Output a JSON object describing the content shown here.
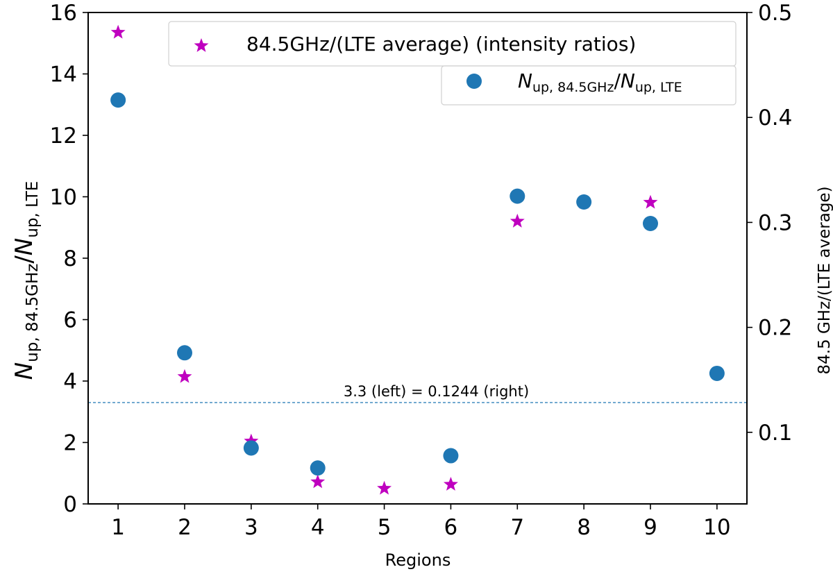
{
  "chart_data": {
    "type": "scatter",
    "xlabel": "Regions",
    "ylabel_left": "N_up, 84.5GHz / N_up, LTE",
    "ylabel_right": "84.5 GHz/(LTE average)",
    "x_ticks": [
      "1",
      "2",
      "3",
      "4",
      "5",
      "6",
      "7",
      "8",
      "9",
      "10"
    ],
    "xlim": [
      0.55,
      10.45
    ],
    "ylim_left": [
      0,
      16
    ],
    "ylim_right": [
      0.0318,
      0.5
    ],
    "left_ticks": [
      "0",
      "2",
      "4",
      "6",
      "8",
      "10",
      "12",
      "14",
      "16"
    ],
    "right_ticks": [
      "0.1",
      "0.2",
      "0.3",
      "0.4",
      "0.5"
    ],
    "series": [
      {
        "name": "84.5GHz/(LTE average) (intensity ratios)",
        "axis": "right",
        "marker": "star",
        "color": "#bf00bf",
        "x": [
          1,
          2,
          3,
          4,
          5,
          6,
          7,
          8,
          9
        ],
        "y": [
          0.481,
          0.153,
          0.0915,
          0.0527,
          0.0465,
          0.0503,
          0.301,
          0.319,
          0.319
        ]
      },
      {
        "name": "N_up, 84.5GHz / N_up, LTE",
        "axis": "left",
        "marker": "circle",
        "color": "#1f77b4",
        "x": [
          1,
          2,
          3,
          4,
          5,
          6,
          7,
          8,
          9,
          10
        ],
        "y": [
          13.15,
          4.92,
          1.82,
          1.17,
          null,
          1.57,
          10.02,
          9.83,
          9.13,
          4.25
        ]
      }
    ],
    "hline": {
      "y_left": 3.3,
      "label": "3.3 (left) = 0.1244 (right)",
      "color": "#1f77b4"
    },
    "legend_position": "top-right"
  }
}
